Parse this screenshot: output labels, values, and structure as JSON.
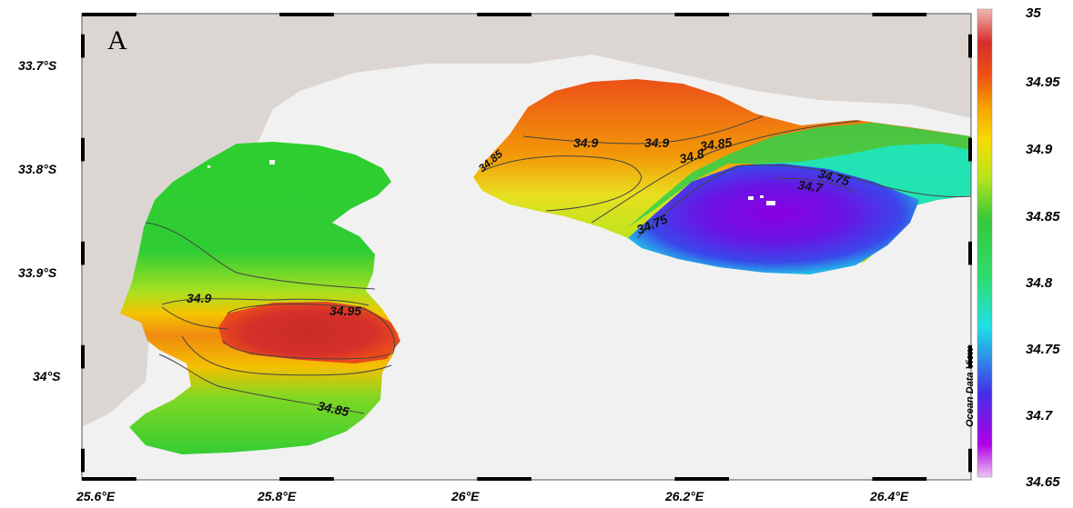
{
  "panel_label": "A",
  "watermark": "Ocean Data View",
  "lat_labels": [
    "33.7°S",
    "33.8°S",
    "33.9°S",
    "34°S"
  ],
  "lon_labels": [
    "25.6°E",
    "25.8°E",
    "26°E",
    "26.2°E",
    "26.4°E"
  ],
  "colorbar": {
    "min": 34.65,
    "max": 35,
    "tick_labels": [
      "35",
      "34.95",
      "34.9",
      "34.85",
      "34.8",
      "34.75",
      "34.7",
      "34.65"
    ],
    "colors": [
      "#e9a8f0",
      "#a400e0",
      "#3a3ae8",
      "#14e6d6",
      "#23cc3c",
      "#c8e61e",
      "#f5c300",
      "#ef5a14",
      "#d6262a",
      "#f0b4b4"
    ]
  },
  "contour_labels": [
    "34.9",
    "34.95",
    "34.85",
    "34.9",
    "34.9",
    "34.85",
    "34.8",
    "34.75",
    "34.7",
    "34.75",
    "34.85"
  ],
  "colors": {
    "land": "#dcd6d3",
    "ocean_blank": "#f0f0f0",
    "frame": "#000000"
  }
}
